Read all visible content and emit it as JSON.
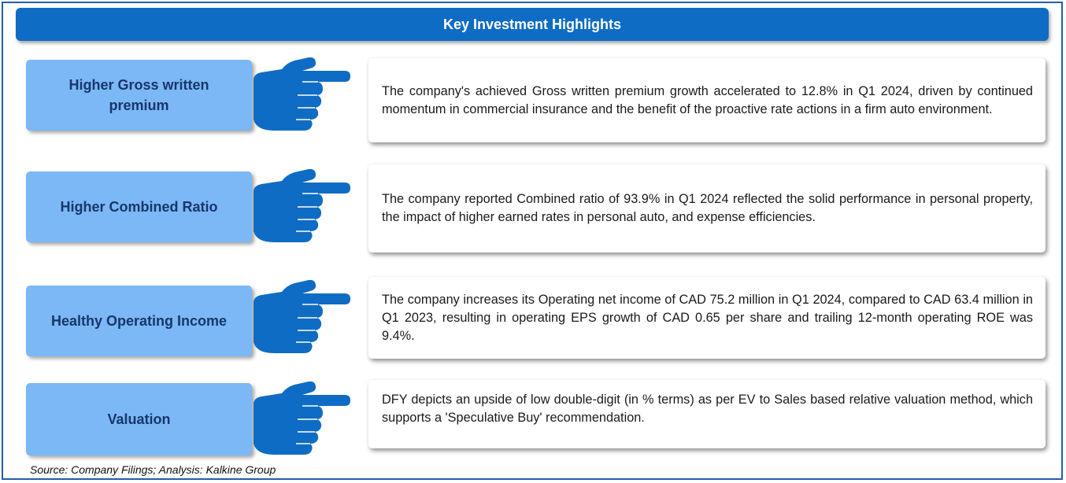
{
  "header": {
    "title": "Key Investment Highlights"
  },
  "highlights": [
    {
      "label": "Higher Gross written premium",
      "description": "The company's achieved Gross written premium  growth accelerated to 12.8% in Q1 2024, driven by continued momentum in commercial insurance and the benefit of the proactive rate actions in a firm auto environment."
    },
    {
      "label": "Higher Combined Ratio",
      "description": "The company reported Combined ratio of 93.9% in Q1 2024 reflected the solid performance in personal property, the impact of higher earned rates in personal auto, and expense efficiencies."
    },
    {
      "label": "Healthy Operating Income",
      "description": "The company increases its Operating net income of CAD 75.2 million in Q1 2024, compared to CAD 63.4 million in Q1 2023, resulting in operating EPS growth of CAD 0.65 per share and trailing 12-month operating ROE  was 9.4%."
    },
    {
      "label": "Valuation",
      "description": "DFY depicts an upside of low double-digit (in % terms) as per EV to Sales based relative valuation method, which supports a 'Speculative Buy' recommendation."
    }
  ],
  "icons": {
    "pointer": "pointing-hand-icon"
  },
  "colors": {
    "header_bg": "#0f6cc4",
    "label_bg": "#7cb8f5",
    "label_text": "#17366b",
    "hand": "#0f6cc4",
    "frame": "#1f5fa8"
  },
  "footer": {
    "source": "Source: Company Filings; Analysis: Kalkine Group"
  }
}
